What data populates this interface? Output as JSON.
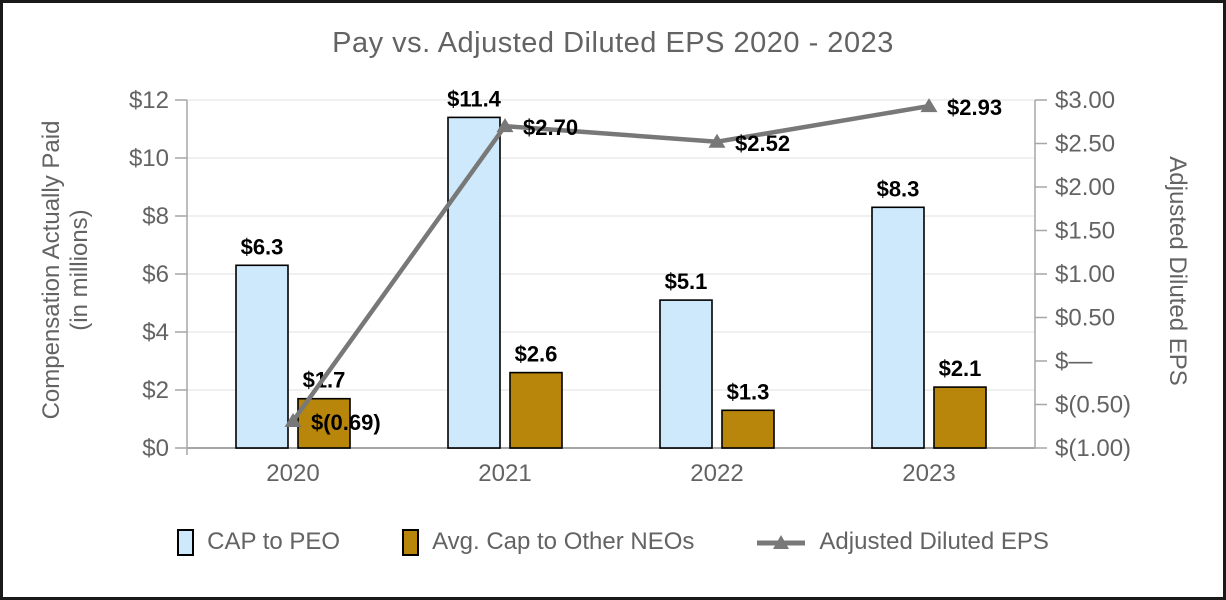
{
  "chart_data": {
    "type": "combo_bar_line",
    "title": "Pay vs. Adjusted Diluted EPS 2020 - 2023",
    "categories": [
      "2020",
      "2021",
      "2022",
      "2023"
    ],
    "series": [
      {
        "name": "CAP to PEO",
        "type": "bar",
        "axis": "left",
        "color": "#CDE9FB",
        "border_color": "#000000",
        "values": [
          6.3,
          11.4,
          5.1,
          8.3
        ],
        "data_labels": [
          "$6.3",
          "$11.4",
          "$5.1",
          "$8.3"
        ]
      },
      {
        "name": "Avg. Cap to Other NEOs",
        "type": "bar",
        "axis": "left",
        "color": "#B8860B",
        "border_color": "#000000",
        "values": [
          1.7,
          2.6,
          1.3,
          2.1
        ],
        "data_labels": [
          "$1.7",
          "$2.6",
          "$1.3",
          "$2.1"
        ]
      },
      {
        "name": "Adjusted Diluted EPS",
        "type": "line",
        "axis": "right",
        "color": "#787878",
        "marker": "triangle",
        "values": [
          -0.69,
          2.7,
          2.52,
          2.93
        ],
        "data_labels": [
          "$(0.69)",
          "$2.70",
          "$2.52",
          "$2.93"
        ]
      }
    ],
    "left_axis": {
      "title": [
        "Compensation Actually Paid",
        "(in millions)"
      ],
      "min": 0,
      "max": 12,
      "step": 2,
      "tick_labels": [
        "$12",
        "$10",
        "$8",
        "$6",
        "$4",
        "$2",
        "$0"
      ]
    },
    "right_axis": {
      "title": "Adjusted Diluted EPS",
      "min": -1.0,
      "max": 3.0,
      "step": 0.5,
      "tick_labels": [
        "$3.00",
        "$2.50",
        "$2.00",
        "$1.50",
        "$1.00",
        "$0.50",
        "$—",
        "$(0.50)",
        "$(1.00)"
      ]
    },
    "legend_position": "bottom",
    "grid": "horizontal",
    "colors": {
      "grid": "#E6E6E6",
      "axis": "#A6A6A6",
      "text": "#636363",
      "data_label": "#000000",
      "background": "#FFFFFF",
      "frame_border": "#1A1A1A"
    }
  }
}
